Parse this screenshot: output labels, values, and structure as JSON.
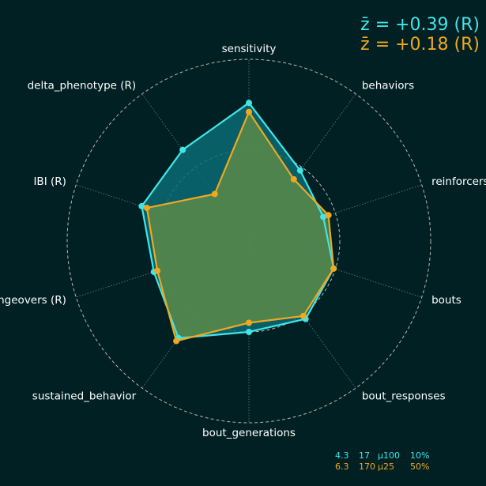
{
  "chart_data": {
    "type": "radar",
    "axes": [
      "sensitivity",
      "behaviors",
      "reinforcers",
      "bouts",
      "bout_responses",
      "bout_generations",
      "sustained_behavior",
      "changeovers (R)",
      "IBI (R)",
      "delta_phenotype (R)"
    ],
    "rmax": 1.0,
    "reference_circles": [
      0.5,
      1.0
    ],
    "grid": true,
    "series": [
      {
        "color": "#40e6e6",
        "fill": "#0a6b73",
        "summary": "z̄ = +0.39 (R)",
        "values": [
          0.76,
          0.48,
          0.43,
          0.49,
          0.53,
          0.5,
          0.66,
          0.55,
          0.62,
          0.62
        ],
        "footer": [
          "4.3",
          "17",
          "µ100",
          "10%"
        ]
      },
      {
        "color": "#f0a820",
        "fill": "#5a8a4a",
        "summary": "z̄ = +0.18 (R)",
        "values": [
          0.71,
          0.42,
          0.46,
          0.49,
          0.51,
          0.45,
          0.68,
          0.53,
          0.59,
          0.32
        ],
        "footer": [
          "6.3",
          "170",
          "µ25",
          "50%"
        ]
      }
    ]
  }
}
